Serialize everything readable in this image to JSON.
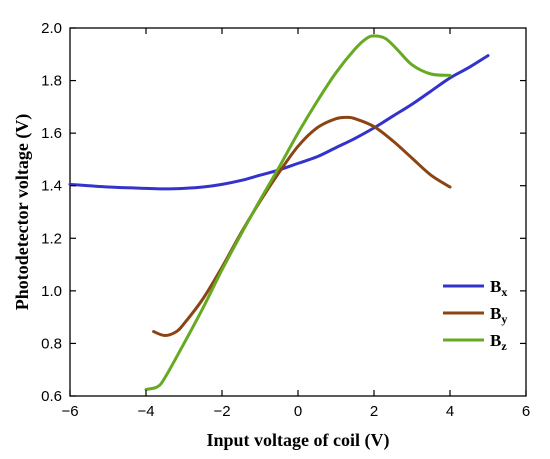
{
  "chart_data": {
    "type": "line",
    "xlabel": "Input voltage of coil (V)",
    "ylabel": "Photodetector voltage (V)",
    "xlim": [
      -6,
      6
    ],
    "ylim": [
      0.6,
      2.0
    ],
    "xticks": [
      -6,
      -4,
      -2,
      0,
      2,
      4,
      6
    ],
    "yticks": [
      0.6,
      0.8,
      1.0,
      1.2,
      1.4,
      1.6,
      1.8,
      2.0
    ],
    "xtick_labels": [
      "−6",
      "−4",
      "−2",
      "0",
      "2",
      "4",
      "6"
    ],
    "ytick_labels": [
      "0.6",
      "0.8",
      "1.0",
      "1.2",
      "1.4",
      "1.6",
      "1.8",
      "2.0"
    ],
    "legend_position": "right",
    "grid": false,
    "series": [
      {
        "name": "Bx",
        "label_main": "B",
        "label_sub": "x",
        "color": "#3333cc",
        "x": [
          -6,
          -5,
          -4,
          -3.5,
          -3,
          -2.5,
          -2,
          -1.5,
          -1,
          -0.5,
          0,
          0.5,
          1,
          1.5,
          2,
          2.5,
          3,
          3.5,
          4,
          4.5,
          5
        ],
        "y": [
          1.405,
          1.395,
          1.39,
          1.388,
          1.39,
          1.395,
          1.405,
          1.42,
          1.44,
          1.46,
          1.485,
          1.51,
          1.545,
          1.58,
          1.62,
          1.665,
          1.71,
          1.76,
          1.81,
          1.85,
          1.895
        ]
      },
      {
        "name": "By",
        "label_main": "B",
        "label_sub": "y",
        "color": "#8b4513",
        "x": [
          -3.8,
          -3.5,
          -3.2,
          -3,
          -2.5,
          -2,
          -1.5,
          -1,
          -0.5,
          0,
          0.5,
          1,
          1.3,
          1.5,
          2,
          2.5,
          3,
          3.5,
          4
        ],
        "y": [
          0.845,
          0.83,
          0.845,
          0.875,
          0.97,
          1.09,
          1.22,
          1.34,
          1.45,
          1.55,
          1.62,
          1.655,
          1.66,
          1.655,
          1.625,
          1.57,
          1.505,
          1.44,
          1.395
        ]
      },
      {
        "name": "Bz",
        "label_main": "B",
        "label_sub": "z",
        "color": "#66aa22",
        "x": [
          -4,
          -3.7,
          -3.5,
          -3,
          -2.5,
          -2,
          -1.5,
          -1,
          -0.5,
          0,
          0.5,
          1,
          1.5,
          1.8,
          2,
          2.3,
          2.6,
          3,
          3.5,
          4
        ],
        "y": [
          0.625,
          0.635,
          0.67,
          0.8,
          0.935,
          1.08,
          1.215,
          1.345,
          1.47,
          1.6,
          1.72,
          1.83,
          1.92,
          1.96,
          1.97,
          1.96,
          1.92,
          1.86,
          1.825,
          1.82
        ]
      }
    ]
  }
}
